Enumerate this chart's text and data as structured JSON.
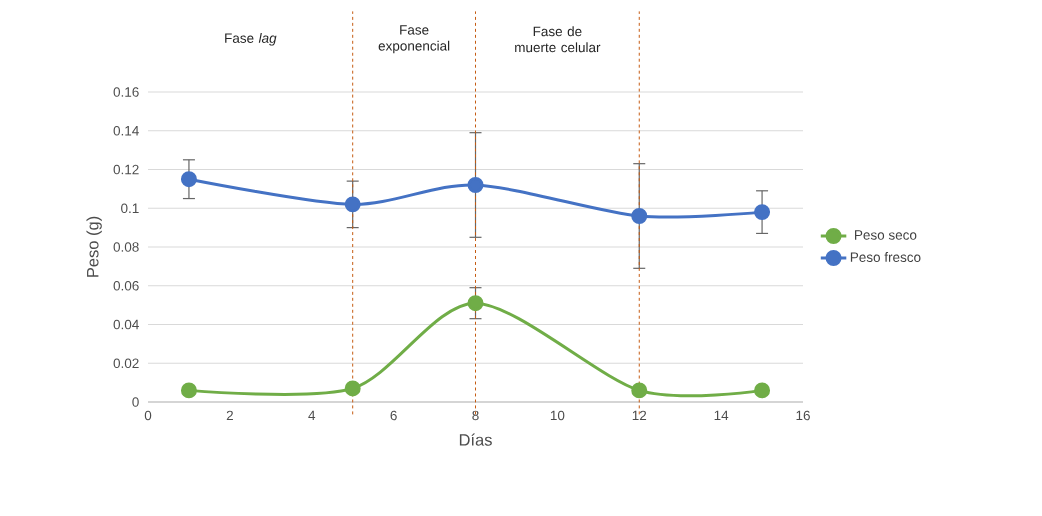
{
  "chart_data": {
    "type": "line",
    "xlabel": "Días",
    "ylabel": "Peso (g)",
    "xlim": [
      0,
      16
    ],
    "xticks": [
      0,
      2,
      4,
      6,
      8,
      10,
      12,
      14,
      16
    ],
    "ylim": [
      0,
      0.16
    ],
    "yticks": [
      0,
      0.02,
      0.04,
      0.06,
      0.08,
      0.1,
      0.12,
      0.14,
      0.16
    ],
    "x": [
      1,
      5,
      8,
      12,
      15
    ],
    "series": [
      {
        "name": "Peso seco",
        "color": "#70ad47",
        "values": [
          0.006,
          0.007,
          0.051,
          0.006,
          0.006
        ],
        "errors": [
          null,
          null,
          0.008,
          null,
          null
        ]
      },
      {
        "name": "Peso fresco",
        "color": "#4472c4",
        "values": [
          0.115,
          0.102,
          0.112,
          0.096,
          0.098
        ],
        "errors": [
          0.01,
          0.012,
          0.027,
          0.027,
          0.011
        ]
      }
    ],
    "ref_lines": [
      {
        "axis": "x",
        "value": 5,
        "color": "#c55a11",
        "line_style": "dashed"
      },
      {
        "axis": "x",
        "value": 8,
        "color": "#c55a11",
        "line_style": "dashed"
      },
      {
        "axis": "x",
        "value": 12,
        "color": "#c55a11",
        "line_style": "dashed"
      }
    ],
    "annotations": [
      "Fase *lag*",
      "Fase exponencial",
      "Fase de muerte celular"
    ],
    "grid": "y",
    "legend": "right",
    "marker": "circle",
    "line_style": "solid"
  }
}
